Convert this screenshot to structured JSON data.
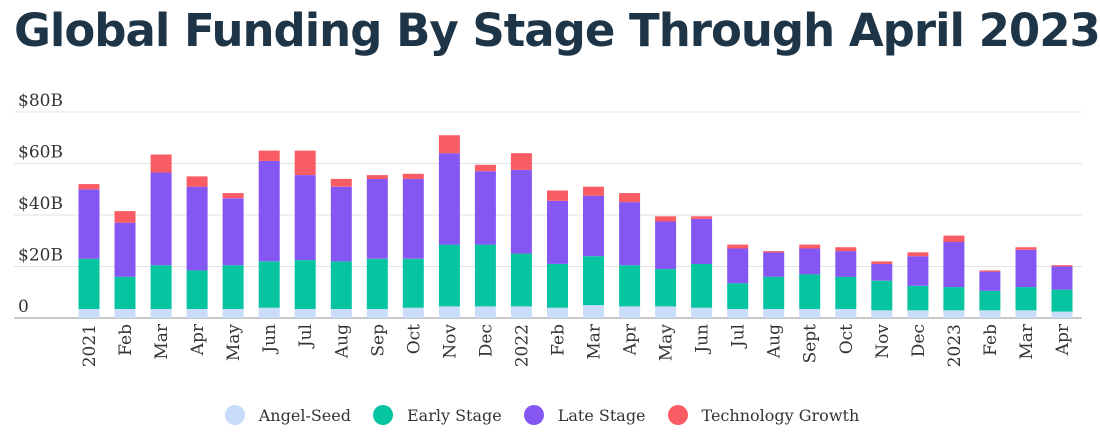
{
  "chart_data": {
    "type": "bar",
    "stacked": true,
    "title": "Global Funding By Stage Through April 2023",
    "xlabel": "",
    "ylabel": "",
    "ylim": [
      0,
      80
    ],
    "y_ticks": [
      {
        "value": 0,
        "label": "0"
      },
      {
        "value": 20,
        "label": "$20B"
      },
      {
        "value": 40,
        "label": "$40B"
      },
      {
        "value": 60,
        "label": "$60B"
      },
      {
        "value": 80,
        "label": "$80B"
      }
    ],
    "grid": true,
    "legend_position": "bottom-center",
    "categories": [
      "2021",
      "Feb",
      "Mar",
      "Apr",
      "May",
      "Jun",
      "Jul",
      "Aug",
      "Sep",
      "Oct",
      "Nov",
      "Dec",
      "2022",
      "Feb",
      "Mar",
      "Apr",
      "May",
      "Jun",
      "Jul",
      "Aug",
      "Sept",
      "Oct",
      "Nov",
      "Dec",
      "2023",
      "Feb",
      "Mar",
      "Apr"
    ],
    "series": [
      {
        "name": "Angel-Seed",
        "color": "#c9dcfa",
        "values": [
          3.5,
          3.5,
          3.5,
          3.5,
          3.5,
          4,
          3.5,
          3.5,
          3.5,
          4,
          4.5,
          4.5,
          4.5,
          4,
          5,
          4.5,
          4.5,
          4,
          3.5,
          3.5,
          3.5,
          3.5,
          3,
          3,
          3,
          3,
          3,
          2.5
        ]
      },
      {
        "name": "Early Stage",
        "color": "#07c4a1",
        "values": [
          19.5,
          12.5,
          17,
          15,
          17,
          18,
          19,
          18.5,
          19.5,
          19,
          24,
          24,
          20.5,
          17,
          19,
          16,
          14.5,
          17,
          10,
          12.5,
          13.5,
          12.5,
          11.5,
          9.5,
          9,
          7.5,
          9,
          8.5
        ]
      },
      {
        "name": "Late Stage",
        "color": "#8457f3",
        "values": [
          27,
          21,
          36,
          32.5,
          26,
          39,
          33,
          29,
          31,
          31,
          35.5,
          28.5,
          32.5,
          24.5,
          23.5,
          24.5,
          18.5,
          17.5,
          13.5,
          9.5,
          10,
          10,
          6.5,
          11.5,
          17.5,
          7.5,
          14.5,
          9
        ]
      },
      {
        "name": "Technology Growth",
        "color": "#fa5c64",
        "values": [
          2,
          4.5,
          7,
          4,
          2,
          4,
          9.5,
          3,
          1.5,
          2,
          7,
          2.5,
          6.5,
          4,
          3.5,
          3.5,
          2,
          1,
          1.5,
          0.5,
          1.5,
          1.5,
          1,
          1.5,
          2.5,
          0.5,
          1,
          0.5
        ]
      }
    ]
  }
}
